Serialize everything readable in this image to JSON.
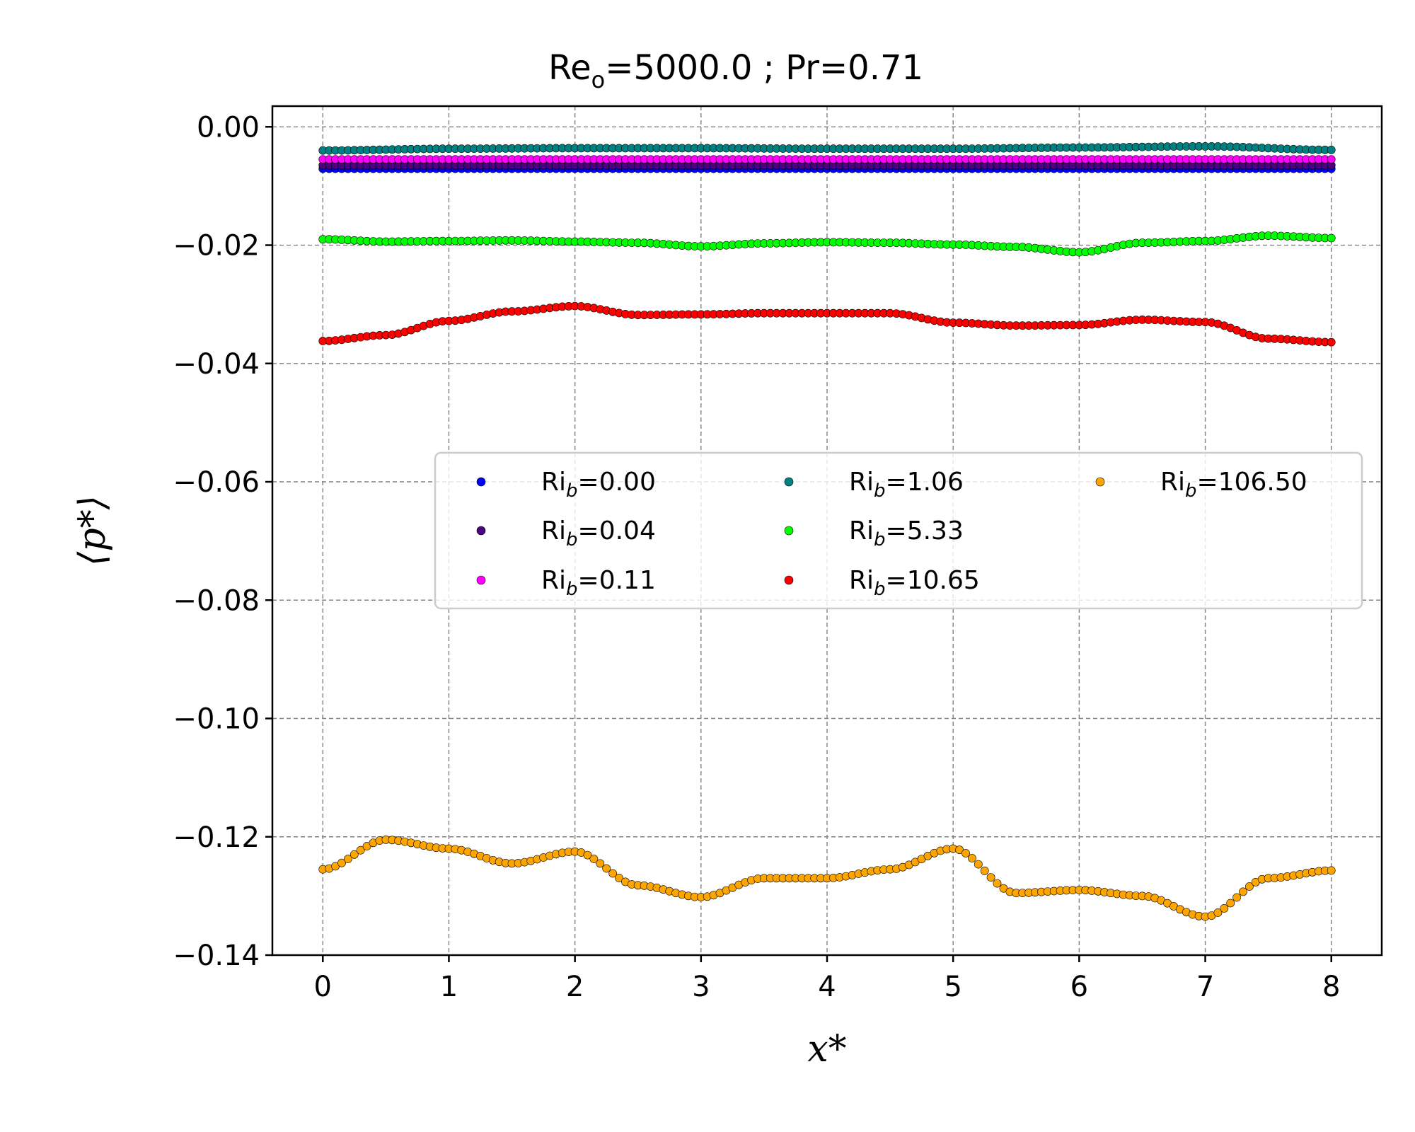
{
  "chart_data": {
    "type": "scatter",
    "title": {
      "prefix": "Re",
      "sub": "o",
      "suffix": "=5000.0 ; Pr=0.71"
    },
    "xlabel": "x*",
    "ylabel": "⟨p*⟩",
    "xlim": [
      -0.4,
      8.4
    ],
    "ylim": [
      -0.14,
      0.0035
    ],
    "xticks": [
      "0",
      "1",
      "2",
      "3",
      "4",
      "5",
      "6",
      "7",
      "8"
    ],
    "yticks": [
      "0.00",
      "−0.02",
      "−0.04",
      "−0.06",
      "−0.08",
      "−0.10",
      "−0.12",
      "−0.14"
    ],
    "grid": true,
    "legend_position": "center-right",
    "legend_columns": 3,
    "n_points_per_series": 161,
    "series": [
      {
        "name": "Ri_b=0.00",
        "label_prefix": "Ri",
        "label_sub": "b",
        "label_suffix": "=0.00",
        "color": "#0000ff",
        "x": [
          0,
          1,
          2,
          3,
          4,
          5,
          6,
          7,
          8
        ],
        "y": [
          -0.0071,
          -0.0071,
          -0.0071,
          -0.0071,
          -0.0071,
          -0.0071,
          -0.0071,
          -0.0071,
          -0.0071
        ]
      },
      {
        "name": "Ri_b=0.04",
        "label_prefix": "Ri",
        "label_sub": "b",
        "label_suffix": "=0.04",
        "color": "#4b0082",
        "x": [
          0,
          1,
          2,
          3,
          4,
          5,
          6,
          7,
          8
        ],
        "y": [
          -0.0065,
          -0.0065,
          -0.0065,
          -0.0065,
          -0.0065,
          -0.0065,
          -0.0065,
          -0.0065,
          -0.0065
        ]
      },
      {
        "name": "Ri_b=0.11",
        "label_prefix": "Ri",
        "label_sub": "b",
        "label_suffix": "=0.11",
        "color": "#ff00ff",
        "x": [
          0,
          1,
          2,
          3,
          4,
          5,
          6,
          7,
          8
        ],
        "y": [
          -0.0055,
          -0.0055,
          -0.0055,
          -0.0055,
          -0.0055,
          -0.0055,
          -0.0055,
          -0.0055,
          -0.0055
        ]
      },
      {
        "name": "Ri_b=1.06",
        "label_prefix": "Ri",
        "label_sub": "b",
        "label_suffix": "=1.06",
        "color": "#008080",
        "x": [
          0,
          1,
          2,
          3,
          4,
          5,
          6,
          7,
          8
        ],
        "y": [
          -0.004,
          -0.0037,
          -0.0036,
          -0.0036,
          -0.0037,
          -0.0037,
          -0.0035,
          -0.0033,
          -0.0039
        ]
      },
      {
        "name": "Ri_b=5.33",
        "label_prefix": "Ri",
        "label_sub": "b",
        "label_suffix": "=5.33",
        "color": "#00ff00",
        "x": [
          0,
          0.5,
          1,
          1.5,
          2,
          2.5,
          3,
          3.5,
          4,
          4.5,
          5,
          5.5,
          6,
          6.5,
          7,
          7.5,
          8
        ],
        "y": [
          -0.019,
          -0.0194,
          -0.0193,
          -0.0192,
          -0.0194,
          -0.0196,
          -0.0202,
          -0.0197,
          -0.0195,
          -0.0196,
          -0.0199,
          -0.0203,
          -0.0212,
          -0.0196,
          -0.0193,
          -0.0184,
          -0.0188
        ]
      },
      {
        "name": "Ri_b=10.65",
        "label_prefix": "Ri",
        "label_sub": "b",
        "label_suffix": "=10.65",
        "color": "#ff0000",
        "x": [
          0,
          0.5,
          1,
          1.5,
          2,
          2.5,
          3,
          3.5,
          4,
          4.5,
          5,
          5.5,
          6,
          6.5,
          7,
          7.5,
          8
        ],
        "y": [
          -0.0362,
          -0.0352,
          -0.0328,
          -0.0312,
          -0.0303,
          -0.0318,
          -0.0317,
          -0.0315,
          -0.0315,
          -0.0315,
          -0.0331,
          -0.0336,
          -0.0335,
          -0.0326,
          -0.033,
          -0.0358,
          -0.0364
        ]
      },
      {
        "name": "Ri_b=106.50",
        "label_prefix": "Ri",
        "label_sub": "b",
        "label_suffix": "=106.50",
        "color": "#ffa500",
        "x": [
          0,
          0.5,
          1,
          1.5,
          2,
          2.5,
          3,
          3.5,
          4,
          4.5,
          5,
          5.5,
          6,
          6.5,
          7,
          7.5,
          8
        ],
        "y": [
          -0.1255,
          -0.1205,
          -0.122,
          -0.1245,
          -0.1225,
          -0.1282,
          -0.1302,
          -0.127,
          -0.127,
          -0.1255,
          -0.122,
          -0.1295,
          -0.129,
          -0.13,
          -0.1335,
          -0.127,
          -0.1257
        ]
      }
    ]
  }
}
